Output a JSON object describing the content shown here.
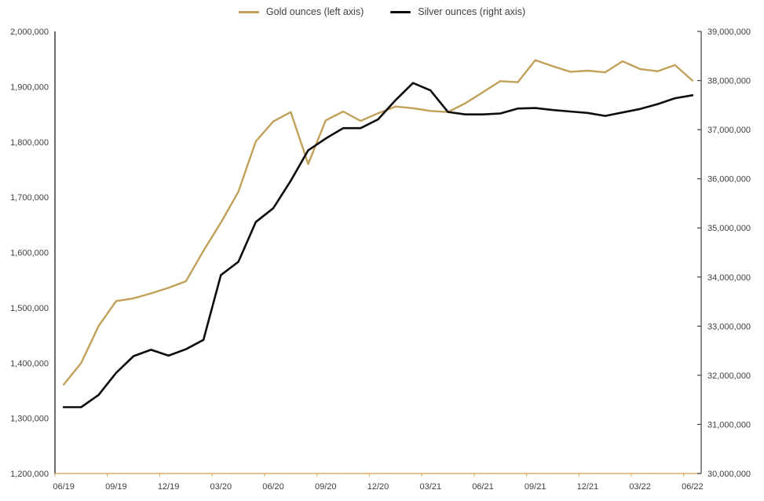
{
  "legend": {
    "items": [
      {
        "label": "Gold ounces (left axis)",
        "color": "#C2A05A"
      },
      {
        "label": "Silver ounces (right axis)",
        "color": "#0D0D0D"
      }
    ]
  },
  "chart_data": {
    "type": "line",
    "title": "",
    "x": [
      "06/19",
      "07/19",
      "08/19",
      "09/19",
      "10/19",
      "11/19",
      "12/19",
      "01/20",
      "02/20",
      "03/20",
      "04/20",
      "05/20",
      "06/20",
      "07/20",
      "08/20",
      "09/20",
      "10/20",
      "11/20",
      "12/20",
      "01/21",
      "02/21",
      "03/21",
      "04/21",
      "05/21",
      "06/21",
      "07/21",
      "08/21",
      "09/21",
      "10/21",
      "11/21",
      "12/21",
      "01/22",
      "02/22",
      "03/22",
      "04/22",
      "05/22",
      "06/22"
    ],
    "x_label_every": 3,
    "x_tick_labels": [
      "06/19",
      "09/19",
      "12/19",
      "03/20",
      "06/20",
      "09/20",
      "12/20",
      "03/21",
      "06/21",
      "09/21",
      "12/21",
      "03/22",
      "06/22"
    ],
    "series": [
      {
        "name": "Gold ounces (left axis)",
        "axis": "left",
        "color": "#C2A05A",
        "stroke_width": 2.4,
        "values": [
          1361000,
          1400000,
          1467000,
          1512000,
          1517000,
          1526000,
          1536000,
          1548000,
          1603000,
          1654000,
          1710000,
          1801000,
          1837000,
          1854000,
          1760000,
          1839000,
          1855000,
          1838000,
          1852000,
          1864000,
          1861000,
          1856000,
          1854000,
          1870000,
          1890000,
          1910000,
          1908000,
          1948000,
          1937000,
          1927000,
          1929000,
          1926000,
          1946000,
          1932000,
          1928000,
          1939000,
          1911000
        ]
      },
      {
        "name": "Silver ounces (right axis)",
        "axis": "right",
        "color": "#0D0D0D",
        "stroke_width": 2.6,
        "values": [
          31350000,
          31350000,
          31600000,
          32050000,
          32390000,
          32520000,
          32400000,
          32530000,
          32720000,
          34040000,
          34310000,
          35120000,
          35400000,
          35960000,
          36580000,
          36820000,
          37030000,
          37030000,
          37210000,
          37600000,
          37950000,
          37800000,
          37360000,
          37310000,
          37310000,
          37330000,
          37430000,
          37440000,
          37400000,
          37370000,
          37340000,
          37280000,
          37350000,
          37420000,
          37520000,
          37640000,
          37700000
        ]
      }
    ],
    "left_axis": {
      "min": 1200000,
      "max": 2000000,
      "tick_step": 100000,
      "tick_labels": [
        "2,000,000",
        "1,900,000",
        "1,800,000",
        "1,700,000",
        "1,600,000",
        "1,500,000",
        "1,400,000",
        "1,300,000",
        "1,200,000"
      ]
    },
    "right_axis": {
      "min": 30000000,
      "max": 39000000,
      "tick_step": 1000000,
      "tick_labels": [
        "39,000,000",
        "38,000,000",
        "37,000,000",
        "36,000,000",
        "35,000,000",
        "34,000,000",
        "33,000,000",
        "32,000,000",
        "31,000,000",
        "30,000,000"
      ]
    },
    "grid": false,
    "legend_position": "top",
    "styles": {
      "axis_text_color": "#404040",
      "x_axis_line_color": "#D4B06A",
      "left_spine_color": "#1F1F1F",
      "right_spine_color": "#404040",
      "background": "#FFFFFF"
    }
  }
}
